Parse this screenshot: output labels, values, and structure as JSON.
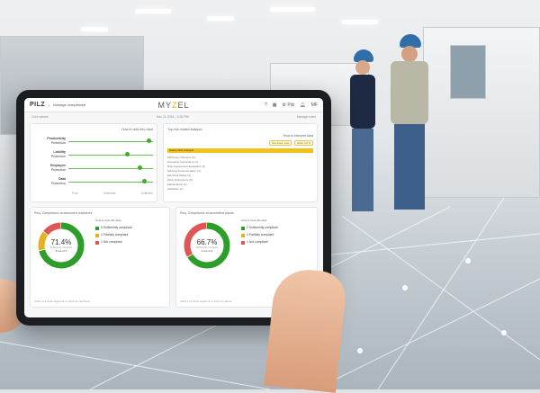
{
  "header": {
    "brand": "PILZ",
    "section": "Manage compliance",
    "logo_pre": "MY",
    "logo_accent": "Z",
    "logo_post": "EL",
    "settings": "Pilz",
    "user": "MF"
  },
  "subbar": {
    "left": "Core values",
    "date": "Nov 11 2024 - 3:25 PM",
    "manage": "Manage rules"
  },
  "core_values": {
    "help": "How to read this chart",
    "rows": [
      {
        "label": "Productivity",
        "sub": "Protection",
        "level": 0.95
      },
      {
        "label": "Liability",
        "sub": "Protection",
        "level": 0.7
      },
      {
        "label": "Employee",
        "sub": "Protection",
        "level": 0.85
      },
      {
        "label": "Data",
        "sub": "Protection",
        "level": 0.9
      }
    ],
    "axis": [
      "Poor",
      "Moderate",
      "Sufficient"
    ]
  },
  "risk": {
    "title": "Top-risk related analysis",
    "help": "How to interpret data",
    "chips": [
      "Sev.Area: Low",
      "Rcat: 10 %"
    ],
    "highlight": "Safety Risk Analysis",
    "items": [
      "Machinery Directive (6)",
      "Operating Instructions (4)",
      "Risk Assessment Evaluation (5)",
      "Machine Documentation (3)",
      "Electrical Safety (2)",
      "Work Instructions (5)",
      "Maintenance (1)",
      "Validation (1)"
    ]
  },
  "donut1": {
    "title": "Req. Compliance at assessed machines",
    "help": "How to view this data",
    "percent": "71.4%",
    "caption": "Sufficiently compliant",
    "count": "5 out of 7",
    "legend": [
      {
        "label": "5 Sufficiently compliant",
        "value": 5,
        "color": "#2e9e2a"
      },
      {
        "label": "1 Partially compliant",
        "value": 1,
        "color": "#e3b21c"
      },
      {
        "label": "1 Not compliant",
        "value": 1,
        "color": "#e05555"
      }
    ],
    "footer": "Click on a circle segment to show its machines"
  },
  "donut2": {
    "title": "Req. Compliance at accredited plants",
    "help": "How to view this data",
    "percent": "66.7%",
    "caption": "Sufficiently compliant",
    "count": "2 out of 3",
    "legend": [
      {
        "label": "2 Sufficiently compliant",
        "value": 2,
        "color": "#2e9e2a"
      },
      {
        "label": "0 Partially compliant",
        "value": 0,
        "color": "#e3b21c"
      },
      {
        "label": "1 Not compliant",
        "value": 1,
        "color": "#e05555"
      }
    ],
    "footer": "Click on a circle segment to show its plants"
  }
}
